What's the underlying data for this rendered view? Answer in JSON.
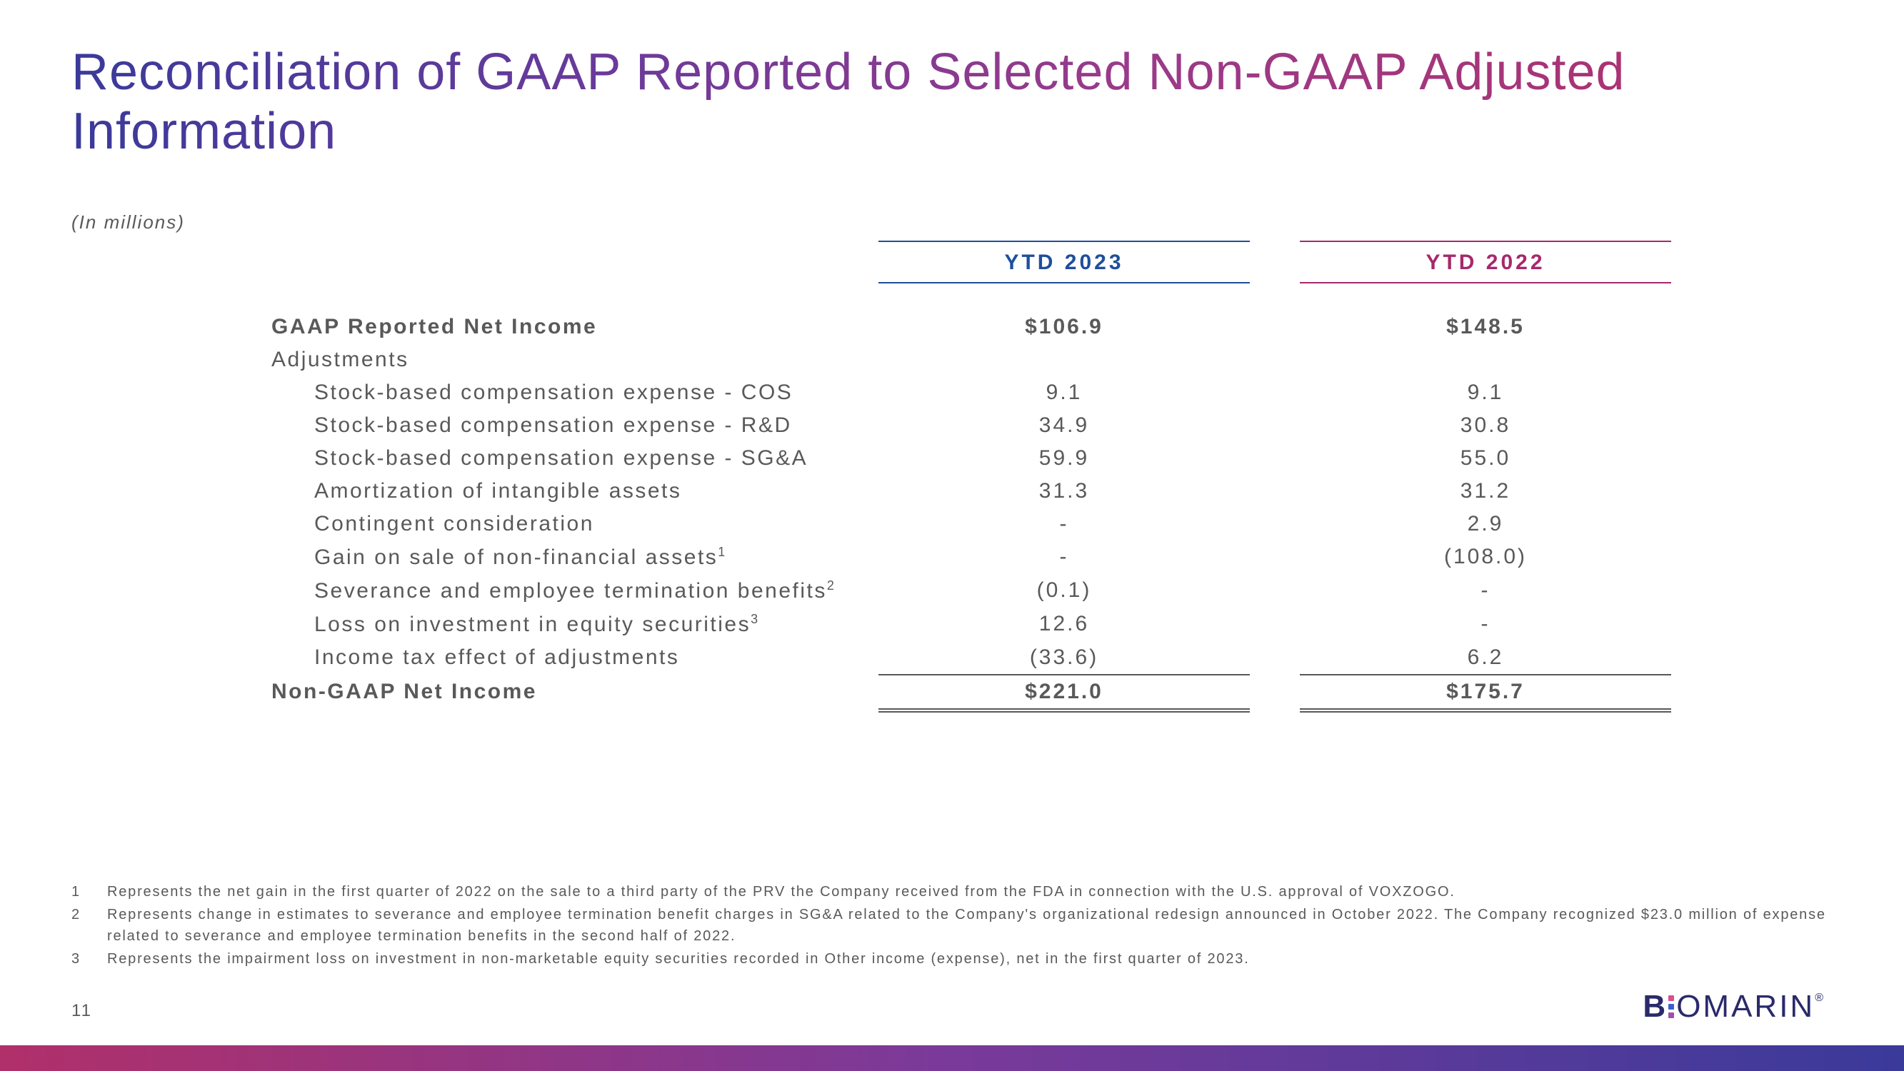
{
  "title": "Reconciliation of GAAP Reported to Selected Non-GAAP Adjusted Information",
  "units_label": "(In millions)",
  "columns": {
    "c1": "YTD 2023",
    "c2": "YTD 2022"
  },
  "colors": {
    "col1_accent": "#1f4e9c",
    "col2_accent": "#a6296c",
    "text_gray": "#595959",
    "background": "#ffffff",
    "title_gradient_start": "#3a3a9a",
    "title_gradient_end": "#b0306a",
    "bar_gradient_start": "#b0306a",
    "bar_gradient_end": "#3a3a9a"
  },
  "rows": {
    "gaap": {
      "label": "GAAP Reported Net Income",
      "v1": "$106.9",
      "v2": "$148.5"
    },
    "adj_header": {
      "label": "Adjustments"
    },
    "sbc_cos": {
      "label": "Stock-based compensation expense - COS",
      "v1": "9.1",
      "v2": "9.1"
    },
    "sbc_rd": {
      "label": "Stock-based compensation expense - R&D",
      "v1": "34.9",
      "v2": "30.8"
    },
    "sbc_sga": {
      "label": "Stock-based compensation expense - SG&A",
      "v1": "59.9",
      "v2": "55.0"
    },
    "amort": {
      "label": "Amortization of intangible assets",
      "v1": "31.3",
      "v2": "31.2"
    },
    "contingent": {
      "label": "Contingent consideration",
      "v1": "-",
      "v2": "2.9"
    },
    "gain_sale": {
      "label": "Gain on sale of non-financial assets",
      "sup": "1",
      "v1": "-",
      "v2": "(108.0)"
    },
    "severance": {
      "label": "Severance and employee termination benefits",
      "sup": "2",
      "v1": "(0.1)",
      "v2": "-"
    },
    "loss_eq": {
      "label": "Loss on investment in equity securities",
      "sup": "3",
      "v1": "12.6",
      "v2": "-"
    },
    "tax": {
      "label": "Income tax effect of adjustments",
      "v1": "(33.6)",
      "v2": "6.2"
    },
    "nongaap": {
      "label": "Non-GAAP Net Income",
      "v1": "$221.0",
      "v2": "$175.7"
    }
  },
  "footnotes": {
    "f1": {
      "num": "1",
      "text": "Represents the net gain in the first quarter of 2022 on the sale to a third party of the PRV the Company received from the FDA in connection with the U.S. approval of VOXZOGO."
    },
    "f2": {
      "num": "2",
      "text": "Represents change in estimates to severance and employee termination benefit charges in SG&A related to the Company's organizational redesign announced in October 2022. The Company recognized $23.0 million of expense related to severance and employee termination benefits in the second half of 2022."
    },
    "f3": {
      "num": "3",
      "text": "Represents the impairment loss on investment in non-marketable equity securities recorded in Other income (expense), net in the first quarter of 2023."
    }
  },
  "page_number": "11",
  "logo": {
    "part1": "B",
    "part2": "OMARIN",
    "reg": "®"
  }
}
